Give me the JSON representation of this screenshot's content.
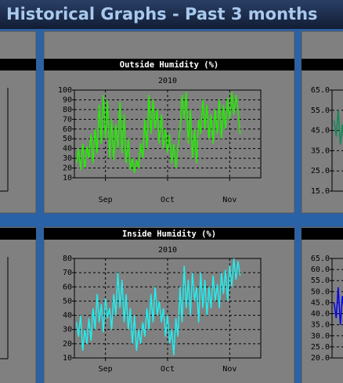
{
  "header": {
    "title": "Historical Graphs - Past 3 months"
  },
  "chart_data": [
    {
      "type": "line",
      "title": "Outside Humidity (%)",
      "subtitle": "2010",
      "x": [
        1,
        2,
        3,
        4,
        5,
        6,
        7,
        8,
        9,
        10,
        11,
        12,
        13,
        14,
        15,
        16,
        17,
        18,
        19,
        20,
        21,
        22,
        23,
        24,
        25,
        26,
        27,
        28,
        29,
        30,
        31,
        32,
        33,
        34,
        35,
        36,
        37,
        38,
        39,
        40,
        41,
        42,
        43,
        44,
        45,
        46,
        47,
        48,
        49,
        50,
        51,
        52,
        53,
        54,
        55,
        56,
        57,
        58,
        59,
        60,
        61,
        62,
        63,
        64,
        65,
        66,
        67,
        68,
        69,
        70,
        71,
        72,
        73,
        74,
        75,
        76,
        77,
        78,
        79,
        80
      ],
      "series": [
        {
          "color": "#22ee00",
          "values": [
            25,
            40,
            18,
            45,
            20,
            42,
            30,
            55,
            25,
            60,
            35,
            85,
            45,
            95,
            50,
            90,
            30,
            70,
            28,
            65,
            40,
            88,
            35,
            75,
            25,
            50,
            18,
            30,
            15,
            28,
            20,
            45,
            30,
            70,
            40,
            95,
            55,
            90,
            60,
            80,
            45,
            75,
            40,
            60,
            35,
            55,
            25,
            45,
            20,
            40,
            60,
            95,
            70,
            98,
            45,
            80,
            30,
            60,
            25,
            70,
            55,
            90,
            60,
            85,
            50,
            75,
            45,
            80,
            55,
            90,
            50,
            85,
            60,
            92,
            70,
            98,
            75,
            95,
            80,
            55
          ]
        }
      ],
      "xlim": [
        0,
        90
      ],
      "xticks": [
        {
          "value": 15,
          "label": "Sep"
        },
        {
          "value": 45,
          "label": "Oct"
        },
        {
          "value": 75,
          "label": "Nov"
        }
      ],
      "ylim": [
        10,
        100
      ],
      "yticks": [
        10,
        20,
        30,
        40,
        50,
        60,
        70,
        80,
        90,
        100
      ],
      "grid": true
    },
    {
      "type": "line",
      "title": "Inside Humidity (%)",
      "subtitle": "2010",
      "x": [
        1,
        2,
        3,
        4,
        5,
        6,
        7,
        8,
        9,
        10,
        11,
        12,
        13,
        14,
        15,
        16,
        17,
        18,
        19,
        20,
        21,
        22,
        23,
        24,
        25,
        26,
        27,
        28,
        29,
        30,
        31,
        32,
        33,
        34,
        35,
        36,
        37,
        38,
        39,
        40,
        41,
        42,
        43,
        44,
        45,
        46,
        47,
        48,
        49,
        50,
        51,
        52,
        53,
        54,
        55,
        56,
        57,
        58,
        59,
        60,
        61,
        62,
        63,
        64,
        65,
        66,
        67,
        68,
        69,
        70,
        71,
        72,
        73,
        74,
        75,
        76,
        77,
        78,
        79,
        80
      ],
      "series": [
        {
          "color": "#22eeee",
          "values": [
            35,
            25,
            40,
            15,
            30,
            20,
            38,
            22,
            45,
            30,
            55,
            35,
            48,
            28,
            52,
            38,
            45,
            30,
            55,
            40,
            70,
            45,
            65,
            35,
            55,
            30,
            45,
            20,
            40,
            15,
            30,
            20,
            35,
            25,
            45,
            30,
            55,
            35,
            60,
            40,
            50,
            35,
            45,
            25,
            40,
            20,
            30,
            12,
            38,
            25,
            60,
            35,
            75,
            45,
            65,
            40,
            70,
            50,
            60,
            35,
            70,
            45,
            65,
            40,
            60,
            45,
            68,
            50,
            62,
            45,
            70,
            55,
            72,
            50,
            75,
            60,
            80,
            65,
            78,
            68
          ]
        }
      ],
      "xlim": [
        0,
        90
      ],
      "xticks": [
        {
          "value": 15,
          "label": "Sep"
        },
        {
          "value": 45,
          "label": "Oct"
        },
        {
          "value": 75,
          "label": "Nov"
        }
      ],
      "ylim": [
        10,
        80
      ],
      "yticks": [
        10,
        20,
        30,
        40,
        50,
        60,
        70,
        80
      ],
      "grid": true
    },
    {
      "type": "line",
      "x": [
        1,
        2,
        3,
        4,
        5,
        6
      ],
      "series": [
        {
          "color": "#118855",
          "values": [
            50,
            42,
            55,
            38,
            48,
            36
          ]
        }
      ],
      "xlim": [
        0,
        90
      ],
      "ylim": [
        15,
        65
      ],
      "yticks": [
        {
          "value": 15,
          "label": "15.0"
        },
        {
          "value": 25,
          "label": "25.0"
        },
        {
          "value": 35,
          "label": "35.0"
        },
        {
          "value": 45,
          "label": "45.0"
        },
        {
          "value": 55,
          "label": "55.0"
        },
        {
          "value": 65,
          "label": "65.0"
        }
      ],
      "grid": true
    },
    {
      "type": "line",
      "x": [
        1,
        2,
        3,
        4,
        5,
        6
      ],
      "series": [
        {
          "color": "#0000ee",
          "values": [
            45,
            38,
            52,
            35,
            48,
            40
          ]
        }
      ],
      "xlim": [
        0,
        90
      ],
      "ylim": [
        20,
        65
      ],
      "yticks": [
        {
          "value": 20,
          "label": "20.0"
        },
        {
          "value": 25,
          "label": "25.0"
        },
        {
          "value": 30,
          "label": "30.0"
        },
        {
          "value": 35,
          "label": "35.0"
        },
        {
          "value": 40,
          "label": "40.0"
        },
        {
          "value": 45,
          "label": "45.0"
        },
        {
          "value": 50,
          "label": "50.0"
        },
        {
          "value": 55,
          "label": "55.0"
        },
        {
          "value": 60,
          "label": "60.0"
        },
        {
          "value": 65,
          "label": "65.0"
        }
      ],
      "grid": true
    }
  ]
}
